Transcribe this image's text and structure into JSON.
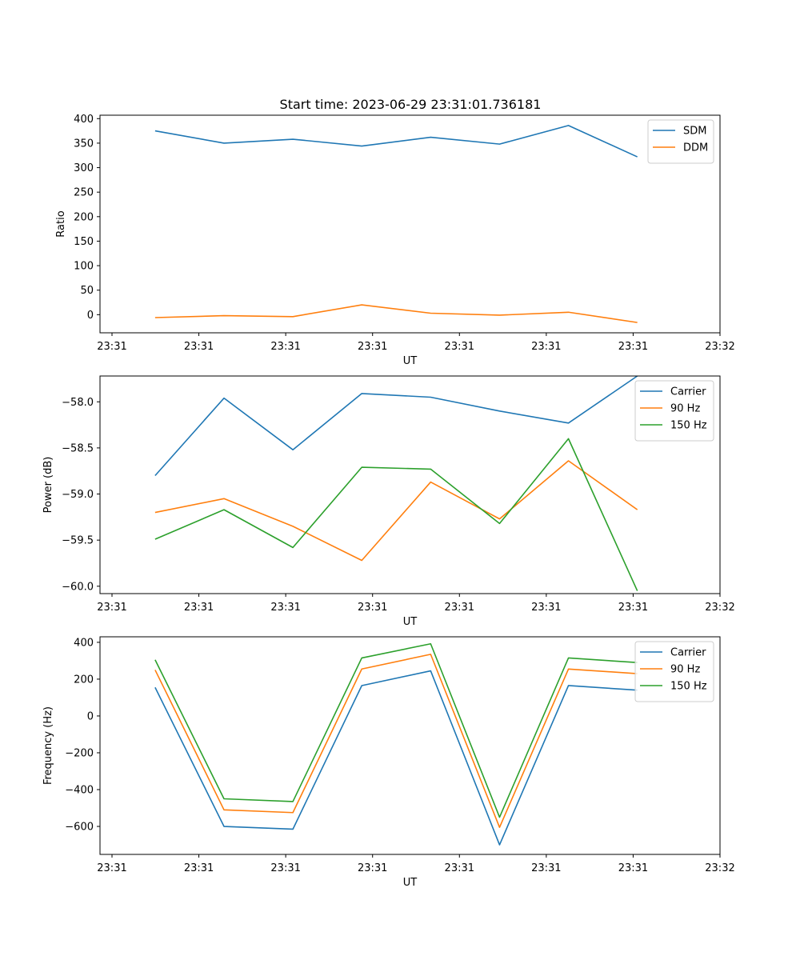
{
  "figure": {
    "title": "Start time: 2023-06-29 23:31:01.736181"
  },
  "chart_data": [
    {
      "type": "line",
      "xlabel": "UT",
      "ylabel": "Ratio",
      "x_tick_labels": [
        "23:31",
        "23:31",
        "23:31",
        "23:31",
        "23:31",
        "23:31",
        "23:31",
        "23:32"
      ],
      "x_points": [
        1,
        2,
        3,
        4,
        5,
        6,
        7,
        8
      ],
      "xlim": [
        0.2,
        9.2
      ],
      "ylim": [
        -37,
        407
      ],
      "yticks": [
        0,
        50,
        100,
        150,
        200,
        250,
        300,
        350,
        400
      ],
      "legend_position": "top-right",
      "series": [
        {
          "name": "SDM",
          "color": "#1f77b4",
          "values": [
            375,
            350,
            358,
            344,
            362,
            348,
            386,
            322
          ]
        },
        {
          "name": "DDM",
          "color": "#ff7f0e",
          "values": [
            -6,
            -2,
            -4,
            20,
            3,
            -1,
            5,
            -16
          ]
        }
      ]
    },
    {
      "type": "line",
      "xlabel": "UT",
      "ylabel": "Power (dB)",
      "x_tick_labels": [
        "23:31",
        "23:31",
        "23:31",
        "23:31",
        "23:31",
        "23:31",
        "23:31",
        "23:32"
      ],
      "x_points": [
        1,
        2,
        3,
        4,
        5,
        6,
        7,
        8
      ],
      "xlim": [
        0.2,
        9.2
      ],
      "ylim": [
        -60.08,
        -57.72
      ],
      "yticks": [
        -60.0,
        -59.5,
        -59.0,
        -58.5,
        -58.0
      ],
      "ytick_labels": [
        "−60.0",
        "−59.5",
        "−59.0",
        "−58.5",
        "−58.0"
      ],
      "legend_position": "top-right",
      "series": [
        {
          "name": "Carrier",
          "color": "#1f77b4",
          "values": [
            -58.8,
            -57.96,
            -58.52,
            -57.91,
            -57.95,
            -58.1,
            -58.23,
            -57.72
          ]
        },
        {
          "name": "90 Hz",
          "color": "#ff7f0e",
          "values": [
            -59.2,
            -59.05,
            -59.35,
            -59.72,
            -58.87,
            -59.27,
            -58.64,
            -59.17
          ]
        },
        {
          "name": "150 Hz",
          "color": "#2ca02c",
          "values": [
            -59.49,
            -59.17,
            -59.58,
            -58.71,
            -58.73,
            -59.32,
            -58.4,
            -60.05
          ]
        }
      ]
    },
    {
      "type": "line",
      "xlabel": "UT",
      "ylabel": "Frequency (Hz)",
      "x_tick_labels": [
        "23:31",
        "23:31",
        "23:31",
        "23:31",
        "23:31",
        "23:31",
        "23:31",
        "23:32"
      ],
      "x_points": [
        1,
        2,
        3,
        4,
        5,
        6,
        7,
        8
      ],
      "xlim": [
        0.2,
        9.2
      ],
      "ylim": [
        -752,
        430
      ],
      "yticks": [
        -600,
        -400,
        -200,
        0,
        200,
        400
      ],
      "ytick_labels": [
        "−600",
        "−400",
        "−200",
        "0",
        "200",
        "400"
      ],
      "legend_position": "top-right",
      "series": [
        {
          "name": "Carrier",
          "color": "#1f77b4",
          "values": [
            155,
            -600,
            -615,
            165,
            245,
            -700,
            165,
            140
          ]
        },
        {
          "name": "90 Hz",
          "color": "#ff7f0e",
          "values": [
            250,
            -510,
            -525,
            255,
            335,
            -605,
            255,
            230
          ]
        },
        {
          "name": "150 Hz",
          "color": "#2ca02c",
          "values": [
            305,
            -450,
            -465,
            315,
            392,
            -550,
            315,
            290
          ]
        }
      ]
    }
  ]
}
